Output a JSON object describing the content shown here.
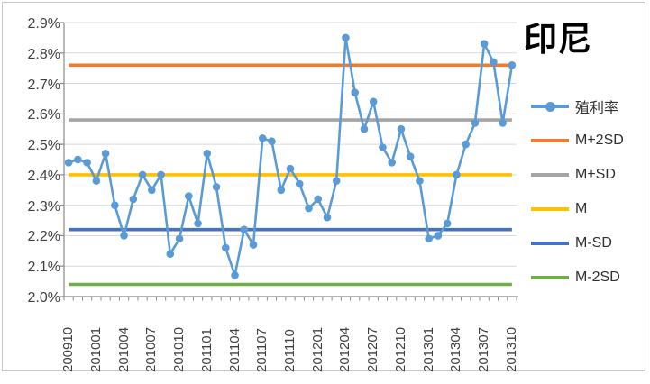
{
  "title": "印尼",
  "axes": {
    "y_ticks": [
      "2.9%",
      "2.8%",
      "2.7%",
      "2.6%",
      "2.5%",
      "2.4%",
      "2.3%",
      "2.2%",
      "2.1%",
      "2.0%"
    ],
    "x_ticks": [
      "200910",
      "201001",
      "201004",
      "201007",
      "201010",
      "201101",
      "201104",
      "201107",
      "201110",
      "201201",
      "201204",
      "201207",
      "201210",
      "201301",
      "201304",
      "201307",
      "201310"
    ]
  },
  "colors": {
    "yield": "#5B9BD5",
    "m_plus_2sd": "#ED7D31",
    "m_plus_sd": "#A5A5A5",
    "m": "#FFC000",
    "m_minus_sd": "#4472C4",
    "m_minus_2sd": "#70AD47",
    "gridline": "#D9D9D9",
    "axis": "#898989",
    "tick_text": "#3f3f3f"
  },
  "chart_data": {
    "type": "line",
    "title": "印尼",
    "x": [
      "200910",
      "200911",
      "200912",
      "201001",
      "201002",
      "201003",
      "201004",
      "201005",
      "201006",
      "201007",
      "201008",
      "201009",
      "201010",
      "201011",
      "201012",
      "201101",
      "201102",
      "201103",
      "201104",
      "201105",
      "201106",
      "201107",
      "201108",
      "201109",
      "201110",
      "201111",
      "201112",
      "201201",
      "201202",
      "201203",
      "201204",
      "201205",
      "201206",
      "201207",
      "201208",
      "201209",
      "201210",
      "201211",
      "201212",
      "201301",
      "201302",
      "201303",
      "201304",
      "201305",
      "201306",
      "201307",
      "201308",
      "201309",
      "201310"
    ],
    "series": [
      {
        "name": "殖利率",
        "type": "line-marker",
        "color": "#5B9BD5",
        "values": [
          2.44,
          2.45,
          2.44,
          2.38,
          2.47,
          2.3,
          2.2,
          2.32,
          2.4,
          2.35,
          2.4,
          2.14,
          2.19,
          2.33,
          2.24,
          2.47,
          2.36,
          2.16,
          2.07,
          2.22,
          2.17,
          2.52,
          2.51,
          2.35,
          2.42,
          2.37,
          2.29,
          2.32,
          2.26,
          2.38,
          2.85,
          2.67,
          2.55,
          2.64,
          2.49,
          2.44,
          2.55,
          2.46,
          2.38,
          2.19,
          2.2,
          2.24,
          2.4,
          2.5,
          2.57,
          2.83,
          2.77,
          2.57,
          2.76
        ]
      },
      {
        "name": "M+2SD",
        "type": "constant",
        "color": "#ED7D31",
        "value": 2.76
      },
      {
        "name": "M+SD",
        "type": "constant",
        "color": "#A5A5A5",
        "value": 2.58
      },
      {
        "name": "M",
        "type": "constant",
        "color": "#FFC000",
        "value": 2.4
      },
      {
        "name": "M-SD",
        "type": "constant",
        "color": "#4472C4",
        "value": 2.22
      },
      {
        "name": "M-2SD",
        "type": "constant",
        "color": "#70AD47",
        "value": 2.04
      }
    ],
    "ylim": [
      2.0,
      2.9
    ],
    "y_tick_step": 0.1,
    "y_tick_format": "percent_1dp",
    "x_tick_every": 3,
    "grid": true,
    "legend_position": "right"
  }
}
